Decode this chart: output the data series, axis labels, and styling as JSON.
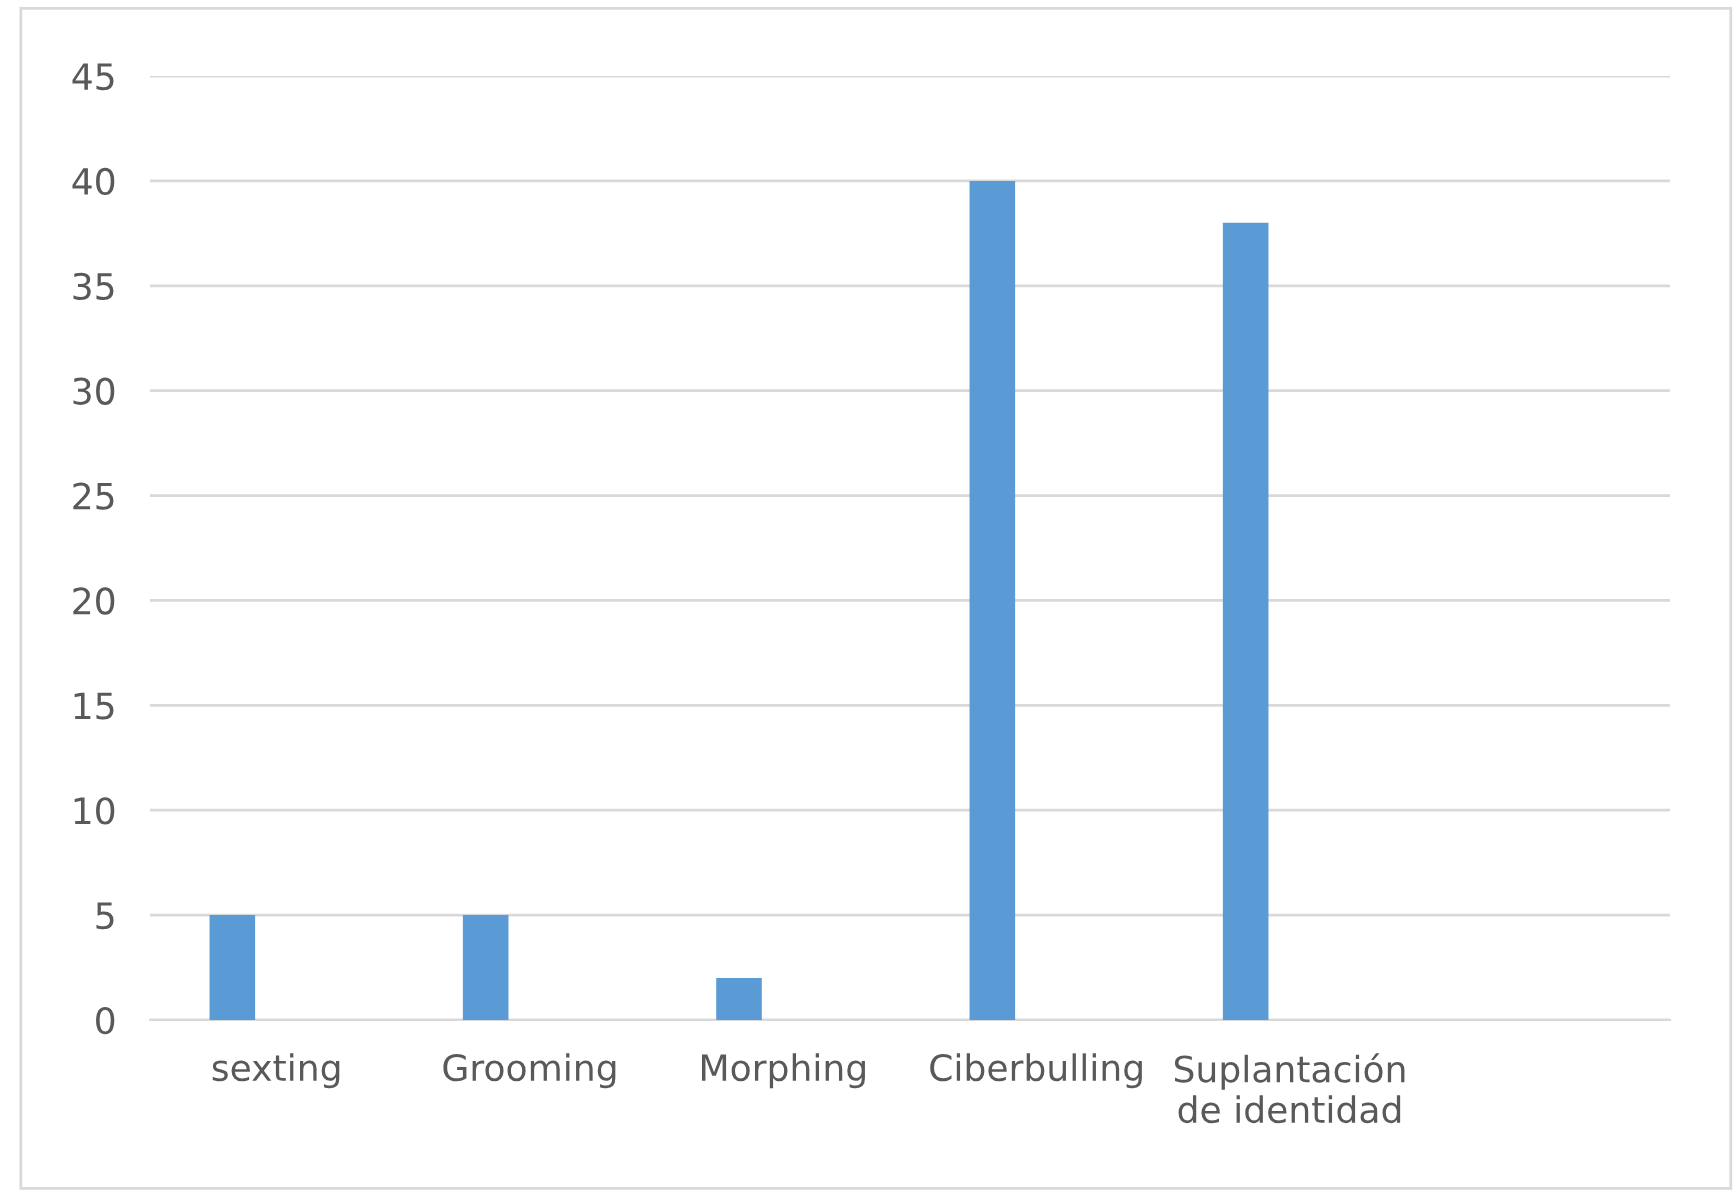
{
  "chart_data": {
    "type": "bar",
    "categories": [
      "sexting",
      "Grooming",
      "Morphing",
      "Ciberbulling",
      "Suplantación de identidad",
      null
    ],
    "values": [
      5,
      5,
      2,
      40,
      38,
      null
    ],
    "color": "#5b9bd5",
    "ylim": [
      0,
      45
    ],
    "yticks": [
      0,
      5,
      10,
      15,
      20,
      25,
      30,
      35,
      40,
      45
    ],
    "grid": "y",
    "legend": false
  }
}
